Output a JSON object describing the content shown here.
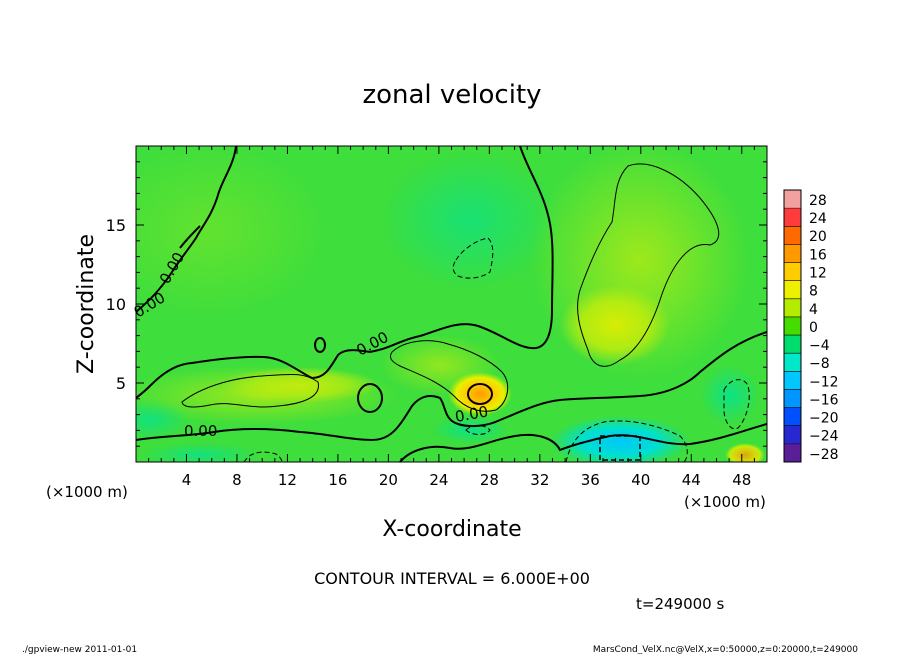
{
  "chart_data": {
    "type": "heatmap",
    "title": "zonal velocity",
    "xlabel": "X-coordinate",
    "ylabel": "Z-coordinate",
    "x_unit_label": "(×1000 m)",
    "y_unit_label": "(×1000 m)",
    "xlim": [
      0,
      50
    ],
    "ylim": [
      0,
      20
    ],
    "x_ticks": [
      4,
      8,
      12,
      16,
      20,
      24,
      28,
      32,
      36,
      40,
      44,
      48
    ],
    "y_ticks": [
      5,
      10,
      15
    ],
    "colorbar_levels": [
      28,
      24,
      20,
      16,
      12,
      8,
      4,
      0,
      -4,
      -8,
      -12,
      -16,
      -20,
      -24,
      -28
    ],
    "colorbar_colors": [
      "#f2a0a0",
      "#ff3c3c",
      "#ff6a00",
      "#ff9900",
      "#ffcc00",
      "#eef000",
      "#b4ec00",
      "#46dc00",
      "#00dc6e",
      "#00e8c8",
      "#00c8ff",
      "#0096ff",
      "#0050ff",
      "#2828d0",
      "#5a1e96"
    ],
    "contour_interval_text": "CONTOUR INTERVAL = 6.000E+00",
    "contour_labels": [
      "0.00",
      "0.00",
      "0.00",
      "0.00",
      "0.00"
    ],
    "time_text": "t=249000 s",
    "grid": false,
    "legend": "right"
  },
  "footer": {
    "left": "./gpview-new  2011-01-01",
    "right": "MarsCond_VelX.nc@VelX,x=0:50000,z=0:20000,t=249000"
  }
}
